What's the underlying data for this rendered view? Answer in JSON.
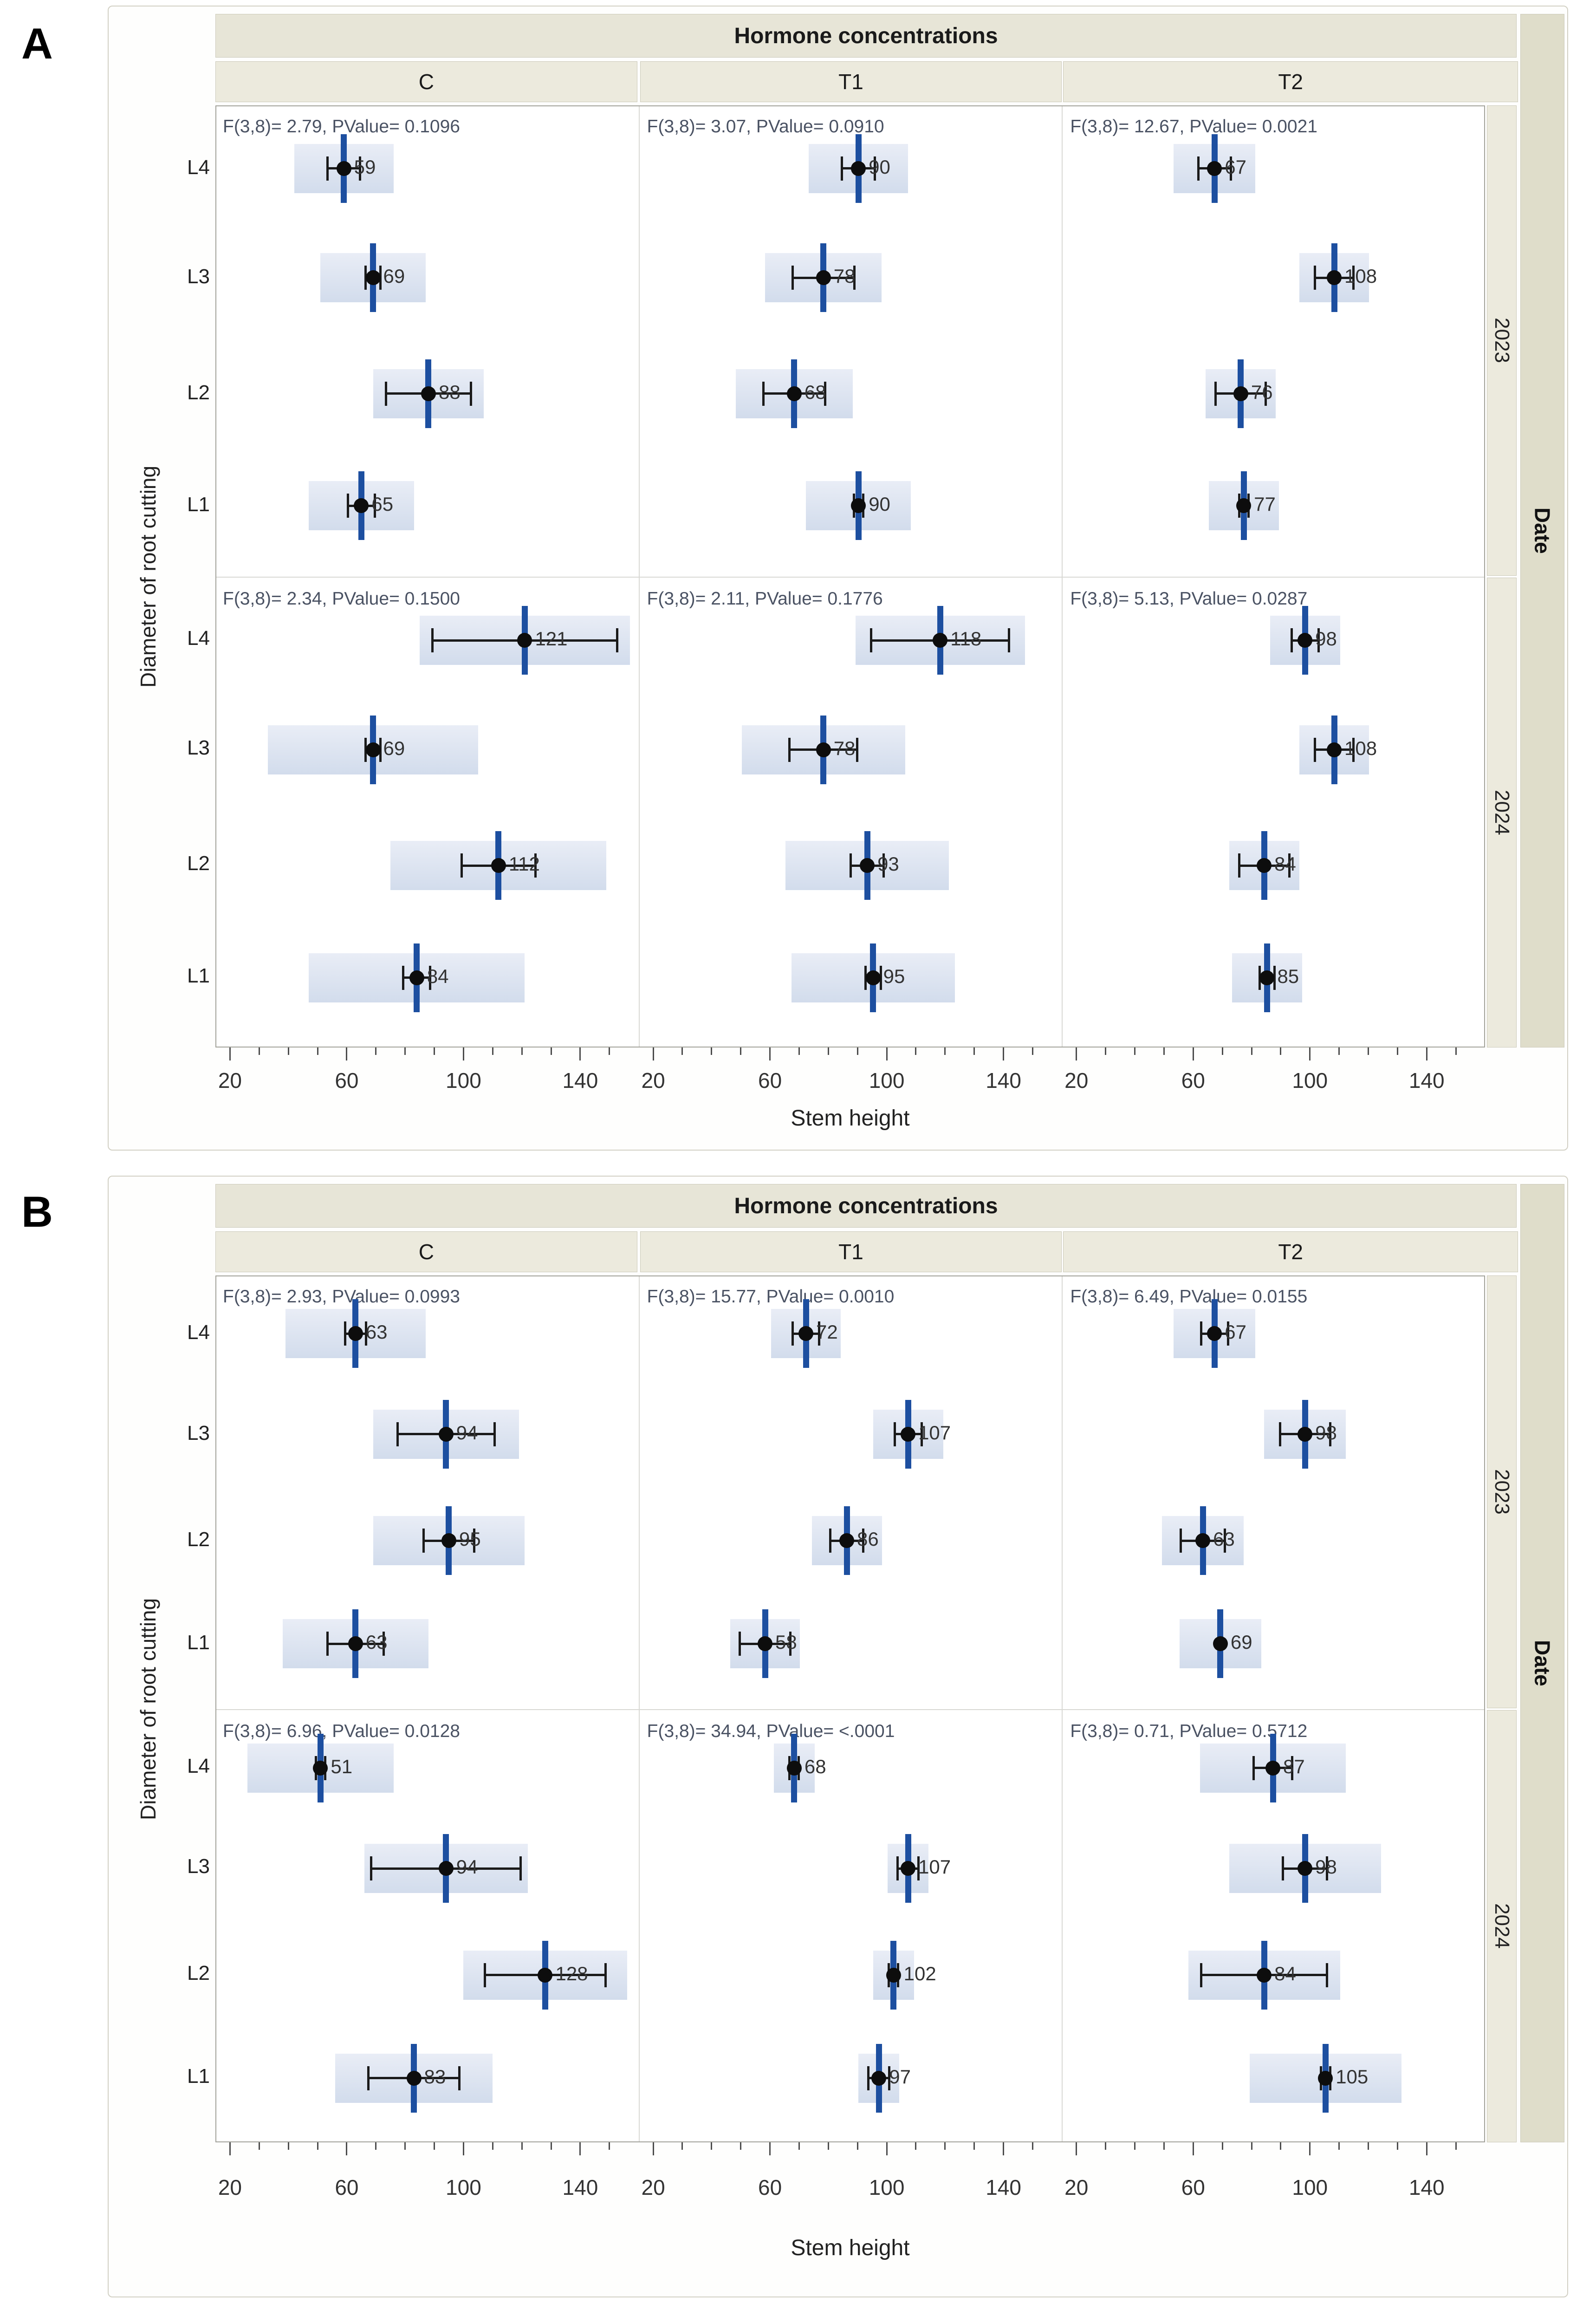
{
  "page": {
    "background": "#ffffff"
  },
  "colors": {
    "box_fill": "#dbe3f0",
    "mean_line": "#1d4fa0",
    "marker": "#0d0d0d",
    "error_bar": "#1a1a1a",
    "title_strip_bg": "#e7e5d7",
    "column_strip_bg": "#eceadd",
    "year_strip_bg": "#eceadd",
    "date_strip_bg": "#dfddca",
    "stat_text": "#4a5263",
    "value_text": "#333333"
  },
  "axis": {
    "x_title": "Stem height",
    "x_ticks": [
      20,
      60,
      100,
      140
    ],
    "x_minor_step": 10,
    "x_minor_max": 150,
    "x_domain": [
      15,
      160
    ]
  },
  "chart_data": [
    {
      "type": "errorbar-dot-trellis",
      "panel_label": "A",
      "title": "Hormone concentrations",
      "columns": [
        "C",
        "T1",
        "T2"
      ],
      "rows": [
        "2023",
        "2024"
      ],
      "row_axis_label": "Date",
      "y_title": "Diameter of  root cutting",
      "y_categories": [
        "L4",
        "L3",
        "L2",
        "L1"
      ],
      "cells": [
        {
          "row": "2023",
          "column": "C",
          "stat": "F(3,8)= 2.79, PValue= 0.1096",
          "points": [
            {
              "cat": "L4",
              "value": 59,
              "err": [
                53,
                65
              ],
              "box": [
                42,
                76
              ]
            },
            {
              "cat": "L3",
              "value": 69,
              "err": [
                66,
                72
              ],
              "box": [
                51,
                87
              ]
            },
            {
              "cat": "L2",
              "value": 88,
              "err": [
                73,
                103
              ],
              "box": [
                69,
                107
              ]
            },
            {
              "cat": "L1",
              "value": 65,
              "err": [
                60,
                70
              ],
              "box": [
                47,
                83
              ]
            }
          ]
        },
        {
          "row": "2023",
          "column": "T1",
          "stat": "F(3,8)= 3.07, PValue= 0.0910",
          "points": [
            {
              "cat": "L4",
              "value": 90,
              "err": [
                84,
                96
              ],
              "box": [
                73,
                107
              ]
            },
            {
              "cat": "L3",
              "value": 78,
              "err": [
                67,
                89
              ],
              "box": [
                58,
                98
              ]
            },
            {
              "cat": "L2",
              "value": 68,
              "err": [
                57,
                79
              ],
              "box": [
                48,
                88
              ]
            },
            {
              "cat": "L1",
              "value": 90,
              "err": [
                88,
                92
              ],
              "box": [
                72,
                108
              ]
            }
          ]
        },
        {
          "row": "2023",
          "column": "T2",
          "stat": "F(3,8)= 12.67, PValue= 0.0021",
          "points": [
            {
              "cat": "L4",
              "value": 67,
              "err": [
                61,
                73
              ],
              "box": [
                53,
                81
              ]
            },
            {
              "cat": "L3",
              "value": 108,
              "err": [
                101,
                115
              ],
              "box": [
                96,
                120
              ]
            },
            {
              "cat": "L2",
              "value": 76,
              "err": [
                67,
                85
              ],
              "box": [
                64,
                88
              ]
            },
            {
              "cat": "L1",
              "value": 77,
              "err": [
                75,
                79
              ],
              "box": [
                65,
                89
              ]
            }
          ]
        },
        {
          "row": "2024",
          "column": "C",
          "stat": "F(3,8)= 2.34, PValue= 0.1500",
          "points": [
            {
              "cat": "L4",
              "value": 121,
              "err": [
                89,
                153
              ],
              "box": [
                85,
                157
              ]
            },
            {
              "cat": "L3",
              "value": 69,
              "err": [
                66,
                72
              ],
              "box": [
                33,
                105
              ]
            },
            {
              "cat": "L2",
              "value": 112,
              "err": [
                99,
                125
              ],
              "box": [
                75,
                149
              ]
            },
            {
              "cat": "L1",
              "value": 84,
              "err": [
                79,
                89
              ],
              "box": [
                47,
                121
              ]
            }
          ]
        },
        {
          "row": "2024",
          "column": "T1",
          "stat": "F(3,8)= 2.11, PValue= 0.1776",
          "points": [
            {
              "cat": "L4",
              "value": 118,
              "err": [
                94,
                142
              ],
              "box": [
                89,
                147
              ]
            },
            {
              "cat": "L3",
              "value": 78,
              "err": [
                66,
                90
              ],
              "box": [
                50,
                106
              ]
            },
            {
              "cat": "L2",
              "value": 93,
              "err": [
                87,
                99
              ],
              "box": [
                65,
                121
              ]
            },
            {
              "cat": "L1",
              "value": 95,
              "err": [
                92,
                98
              ],
              "box": [
                67,
                123
              ]
            }
          ]
        },
        {
          "row": "2024",
          "column": "T2",
          "stat": "F(3,8)= 5.13, PValue= 0.0287",
          "points": [
            {
              "cat": "L4",
              "value": 98,
              "err": [
                93,
                103
              ],
              "box": [
                86,
                110
              ]
            },
            {
              "cat": "L3",
              "value": 108,
              "err": [
                101,
                115
              ],
              "box": [
                96,
                120
              ]
            },
            {
              "cat": "L2",
              "value": 84,
              "err": [
                75,
                93
              ],
              "box": [
                72,
                96
              ]
            },
            {
              "cat": "L1",
              "value": 85,
              "err": [
                82,
                88
              ],
              "box": [
                73,
                97
              ]
            }
          ]
        }
      ]
    },
    {
      "type": "errorbar-dot-trellis",
      "panel_label": "B",
      "title": "Hormone concentrations",
      "columns": [
        "C",
        "T1",
        "T2"
      ],
      "rows": [
        "2023",
        "2024"
      ],
      "row_axis_label": "Date",
      "y_title": "Diameter of  root cutting",
      "y_categories": [
        "L4",
        "L3",
        "L2",
        "L1"
      ],
      "cells": [
        {
          "row": "2023",
          "column": "C",
          "stat": "F(3,8)= 2.93, PValue= 0.0993",
          "points": [
            {
              "cat": "L4",
              "value": 63,
              "err": [
                59,
                67
              ],
              "box": [
                39,
                87
              ]
            },
            {
              "cat": "L3",
              "value": 94,
              "err": [
                77,
                111
              ],
              "box": [
                69,
                119
              ]
            },
            {
              "cat": "L2",
              "value": 95,
              "err": [
                86,
                104
              ],
              "box": [
                69,
                121
              ]
            },
            {
              "cat": "L1",
              "value": 63,
              "err": [
                53,
                73
              ],
              "box": [
                38,
                88
              ]
            }
          ]
        },
        {
          "row": "2023",
          "column": "T1",
          "stat": "F(3,8)= 15.77, PValue= 0.0010",
          "points": [
            {
              "cat": "L4",
              "value": 72,
              "err": [
                67,
                77
              ],
              "box": [
                60,
                84
              ]
            },
            {
              "cat": "L3",
              "value": 107,
              "err": [
                102,
                112
              ],
              "box": [
                95,
                119
              ]
            },
            {
              "cat": "L2",
              "value": 86,
              "err": [
                80,
                92
              ],
              "box": [
                74,
                98
              ]
            },
            {
              "cat": "L1",
              "value": 58,
              "err": [
                49,
                67
              ],
              "box": [
                46,
                70
              ]
            }
          ]
        },
        {
          "row": "2023",
          "column": "T2",
          "stat": "F(3,8)= 6.49, PValue= 0.0155",
          "points": [
            {
              "cat": "L4",
              "value": 67,
              "err": [
                62,
                72
              ],
              "box": [
                53,
                81
              ]
            },
            {
              "cat": "L3",
              "value": 98,
              "err": [
                89,
                107
              ],
              "box": [
                84,
                112
              ]
            },
            {
              "cat": "L2",
              "value": 63,
              "err": [
                55,
                71
              ],
              "box": [
                49,
                77
              ]
            },
            {
              "cat": "L1",
              "value": 69,
              "err": [
                68,
                70
              ],
              "box": [
                55,
                83
              ]
            }
          ]
        },
        {
          "row": "2024",
          "column": "C",
          "stat": "F(3,8)= 6.96, PValue= 0.0128",
          "points": [
            {
              "cat": "L4",
              "value": 51,
              "err": [
                49,
                53
              ],
              "box": [
                26,
                76
              ]
            },
            {
              "cat": "L3",
              "value": 94,
              "err": [
                68,
                120
              ],
              "box": [
                66,
                122
              ]
            },
            {
              "cat": "L2",
              "value": 128,
              "err": [
                107,
                149
              ],
              "box": [
                100,
                156
              ]
            },
            {
              "cat": "L1",
              "value": 83,
              "err": [
                67,
                99
              ],
              "box": [
                56,
                110
              ]
            }
          ]
        },
        {
          "row": "2024",
          "column": "T1",
          "stat": "F(3,8)= 34.94, PValue= <.0001",
          "points": [
            {
              "cat": "L4",
              "value": 68,
              "err": [
                66,
                70
              ],
              "box": [
                61,
                75
              ]
            },
            {
              "cat": "L3",
              "value": 107,
              "err": [
                103,
                111
              ],
              "box": [
                100,
                114
              ]
            },
            {
              "cat": "L2",
              "value": 102,
              "err": [
                100,
                104
              ],
              "box": [
                95,
                109
              ]
            },
            {
              "cat": "L1",
              "value": 97,
              "err": [
                93,
                101
              ],
              "box": [
                90,
                104
              ]
            }
          ]
        },
        {
          "row": "2024",
          "column": "T2",
          "stat": "F(3,8)= 0.71, PValue= 0.5712",
          "points": [
            {
              "cat": "L4",
              "value": 87,
              "err": [
                80,
                94
              ],
              "box": [
                62,
                112
              ]
            },
            {
              "cat": "L3",
              "value": 98,
              "err": [
                90,
                106
              ],
              "box": [
                72,
                124
              ]
            },
            {
              "cat": "L2",
              "value": 84,
              "err": [
                62,
                106
              ],
              "box": [
                58,
                110
              ]
            },
            {
              "cat": "L1",
              "value": 105,
              "err": [
                103,
                107
              ],
              "box": [
                79,
                131
              ]
            }
          ]
        }
      ]
    }
  ]
}
